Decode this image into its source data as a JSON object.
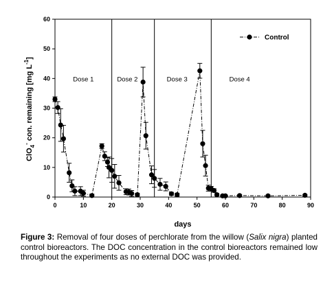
{
  "chart_data": {
    "type": "line",
    "x_ticks": [
      0,
      10,
      20,
      30,
      40,
      50,
      60,
      70,
      80,
      90
    ],
    "y_ticks": [
      0,
      10,
      20,
      30,
      40,
      50,
      60
    ],
    "xlim": [
      0,
      90
    ],
    "ylim": [
      0,
      60
    ],
    "xlabel": "days",
    "ylabel_parts": {
      "pre": "ClO",
      "sub": "4",
      "sup": "-",
      "mid": " con. remaining [mg L",
      "sup2": "-1",
      "post": "]"
    },
    "grid": false,
    "legend_position": "top-right",
    "dose_lines": [
      20,
      35,
      55
    ],
    "dose_labels": [
      {
        "text": "Dose 1",
        "x": 10,
        "y": 39
      },
      {
        "text": "Dose 2",
        "x": 25.5,
        "y": 39
      },
      {
        "text": "Dose 3",
        "x": 43,
        "y": 39
      },
      {
        "text": "Dose 4",
        "x": 65,
        "y": 39
      }
    ],
    "series": [
      {
        "name": "Control",
        "color": "#000000",
        "marker": "circle",
        "line_style": "dash-dot",
        "points": [
          {
            "x": 0,
            "y": 33,
            "err": 0.8
          },
          {
            "x": 1,
            "y": 30.2,
            "err": 2.0
          },
          {
            "x": 2,
            "y": 24.3,
            "err": 5.5
          },
          {
            "x": 3,
            "y": 19.7,
            "err": 4.5
          },
          {
            "x": 5,
            "y": 8.2,
            "err": 3.2
          },
          {
            "x": 6,
            "y": 3.8,
            "err": 2.0
          },
          {
            "x": 7,
            "y": 2.0,
            "err": 1.5
          },
          {
            "x": 9,
            "y": 2.0,
            "err": 1.5
          },
          {
            "x": 10,
            "y": 1.3,
            "err": 1.0
          },
          {
            "x": 13,
            "y": 0.5,
            "err": 0.5
          },
          {
            "x": 16.5,
            "y": 17.2,
            "err": 0.8
          },
          {
            "x": 17.5,
            "y": 13.8,
            "err": 1.5
          },
          {
            "x": 18.5,
            "y": 11.8,
            "err": 1.5
          },
          {
            "x": 19,
            "y": 10.0,
            "err": 3.5
          },
          {
            "x": 20,
            "y": 9.0,
            "err": 4.0
          },
          {
            "x": 21,
            "y": 7.0,
            "err": 4.0
          },
          {
            "x": 22.5,
            "y": 4.8,
            "err": 2.5
          },
          {
            "x": 25,
            "y": 1.8,
            "err": 1.0
          },
          {
            "x": 26,
            "y": 1.7,
            "err": 1.0
          },
          {
            "x": 27,
            "y": 1.2,
            "err": 1.0
          },
          {
            "x": 29,
            "y": 0.8,
            "err": 0.5
          },
          {
            "x": 31,
            "y": 38.8,
            "err": 5.0
          },
          {
            "x": 32,
            "y": 20.7,
            "err": 4.5
          },
          {
            "x": 34,
            "y": 7.5,
            "err": 3.0
          },
          {
            "x": 35,
            "y": 6.3,
            "err": 3.0
          },
          {
            "x": 37,
            "y": 4.3,
            "err": 2.0
          },
          {
            "x": 39,
            "y": 3.6,
            "err": 1.5
          },
          {
            "x": 41,
            "y": 1.1,
            "err": 0.5
          },
          {
            "x": 43,
            "y": 0.8,
            "err": 0.5
          },
          {
            "x": 51,
            "y": 42.6,
            "err": 2.5
          },
          {
            "x": 52,
            "y": 18.0,
            "err": 4.5
          },
          {
            "x": 53,
            "y": 10.6,
            "err": 3.5
          },
          {
            "x": 54,
            "y": 3.0,
            "err": 1.0
          },
          {
            "x": 55,
            "y": 2.8,
            "err": 0.8
          },
          {
            "x": 56,
            "y": 2.2,
            "err": 0.6
          },
          {
            "x": 57,
            "y": 0.8,
            "err": 0.4
          },
          {
            "x": 59,
            "y": 0.4,
            "err": 0.3
          },
          {
            "x": 60,
            "y": 0.4,
            "err": 0.3
          },
          {
            "x": 65,
            "y": 0.5,
            "err": 0.3
          },
          {
            "x": 75,
            "y": 0.4,
            "err": 0.3
          },
          {
            "x": 88,
            "y": 0.6,
            "err": 0.3
          }
        ]
      }
    ]
  },
  "caption": {
    "label": "Figure 3:",
    "text_before_species": " Removal of four doses of perchlorate from the willow (",
    "species": "Salix nigra",
    "text_after_species": ") planted control bioreactors. The DOC concentration in the control bioreactors remained low throughout the experiments as no external DOC was provided."
  }
}
